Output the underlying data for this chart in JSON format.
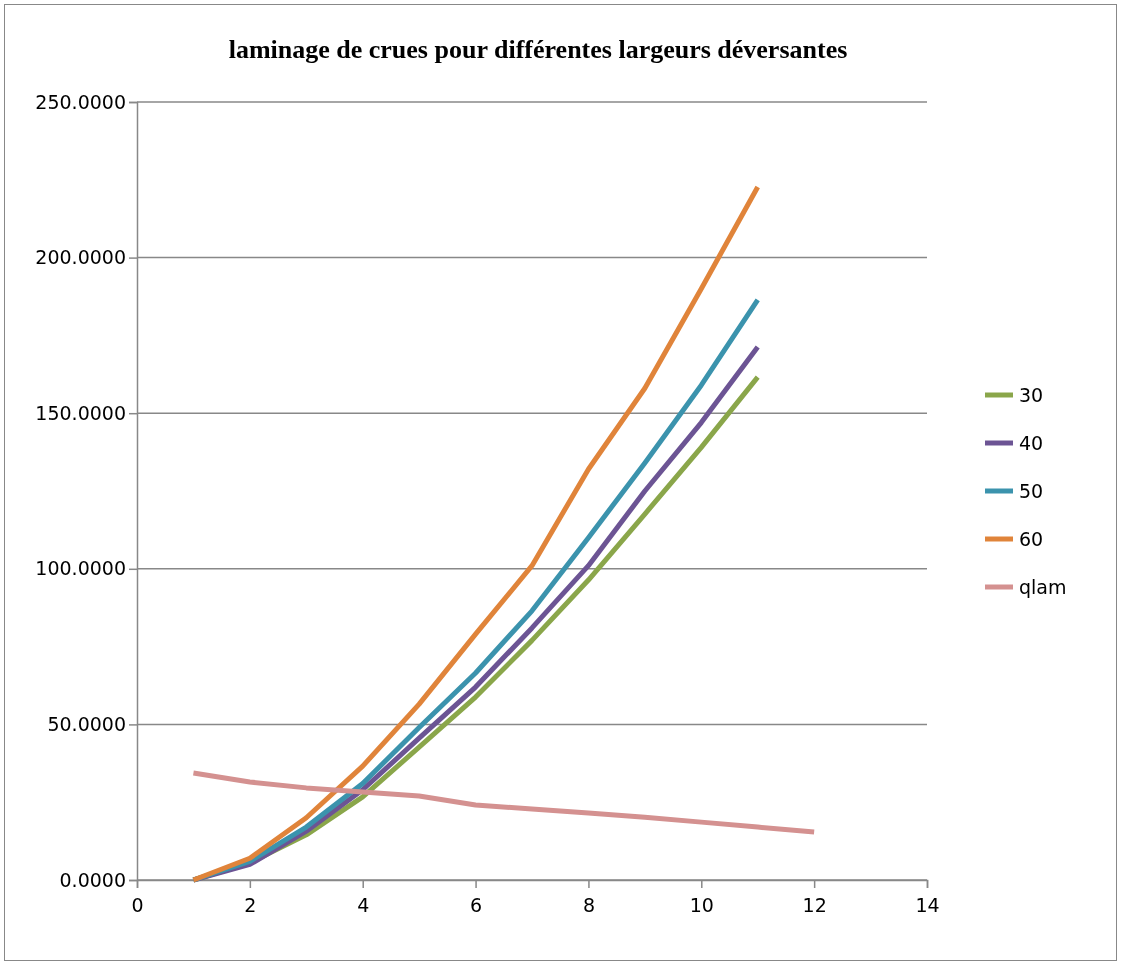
{
  "chart_data": {
    "type": "line",
    "title": "laminage de crues pour différentes largeurs déversantes",
    "xlim": [
      0,
      14
    ],
    "xticks": [
      0,
      2,
      4,
      6,
      8,
      10,
      12,
      14
    ],
    "ylim": [
      0,
      250
    ],
    "yticks": [
      {
        "value": 0,
        "label": "0.0000"
      },
      {
        "value": 50,
        "label": "50.0000"
      },
      {
        "value": 100,
        "label": "100.0000"
      },
      {
        "value": 150,
        "label": "150.0000"
      },
      {
        "value": 200,
        "label": "200.0000"
      },
      {
        "value": 250,
        "label": "250.0000"
      }
    ],
    "grid": "y",
    "legend": "right",
    "marker": "none",
    "line_style": "solid",
    "series": [
      {
        "name": "30",
        "color": "#8aa64a",
        "x": [
          1,
          2,
          3,
          4,
          5,
          6,
          7,
          8,
          9,
          10,
          11
        ],
        "values": [
          0,
          5.5,
          14.5,
          26.7,
          42.7,
          58.8,
          77,
          96.4,
          117.6,
          139,
          161.6
        ]
      },
      {
        "name": "40",
        "color": "#6c5494",
        "x": [
          1,
          2,
          3,
          4,
          5,
          6,
          7,
          8,
          9,
          10,
          11
        ],
        "values": [
          0,
          5,
          15.7,
          29,
          45.6,
          62,
          81,
          101,
          125,
          147,
          171.3
        ]
      },
      {
        "name": "50",
        "color": "#3b93ad",
        "x": [
          1,
          2,
          3,
          4,
          5,
          6,
          7,
          8,
          9,
          10,
          11
        ],
        "values": [
          0,
          6,
          17,
          31,
          49,
          66.5,
          86.5,
          110,
          134,
          159,
          186.4
        ]
      },
      {
        "name": "60",
        "color": "#e0843a",
        "x": [
          1,
          2,
          3,
          4,
          5,
          6,
          7,
          8,
          9,
          10,
          11
        ],
        "values": [
          0,
          7,
          20,
          36.6,
          56.5,
          79,
          101,
          132,
          158,
          190,
          222.7
        ]
      },
      {
        "name": "qlam",
        "color": "#d49190",
        "x": [
          1,
          2,
          3,
          4,
          5,
          6,
          7,
          8,
          9,
          10,
          11,
          12
        ],
        "values": [
          34.4,
          31.5,
          29.6,
          28.3,
          27,
          24.1,
          22.8,
          21.5,
          20.2,
          18.6,
          17,
          15.4
        ]
      }
    ]
  }
}
